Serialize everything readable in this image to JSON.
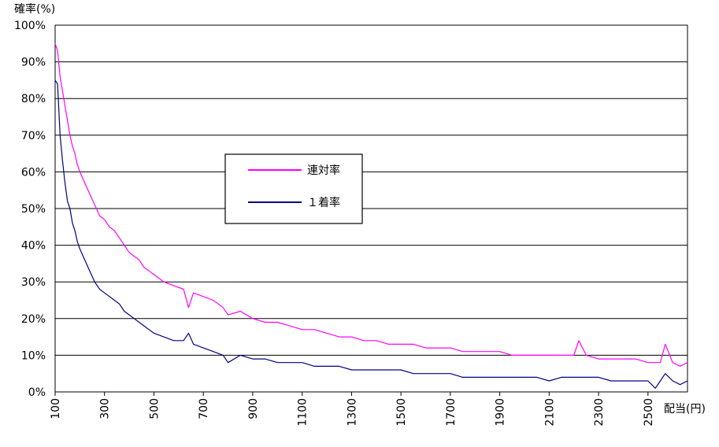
{
  "chart_data": {
    "type": "line",
    "ylabel": "確率(%)",
    "xlabel": "配当(円)",
    "xlim": [
      100,
      2660
    ],
    "ylim": [
      0,
      100
    ],
    "y_ticks": [
      0,
      10,
      20,
      30,
      40,
      50,
      60,
      70,
      80,
      90,
      100
    ],
    "y_tick_labels": [
      "0%",
      "10%",
      "20%",
      "30%",
      "40%",
      "50%",
      "60%",
      "70%",
      "80%",
      "90%",
      "100%"
    ],
    "x_ticks": [
      100,
      300,
      500,
      700,
      900,
      1100,
      1300,
      1500,
      1700,
      1900,
      2100,
      2300,
      2500
    ],
    "x_tick_labels": [
      "100",
      "300",
      "500",
      "700",
      "900",
      "1100",
      "1300",
      "1500",
      "1700",
      "1900",
      "2100",
      "2300",
      "2500"
    ],
    "grid": "horizontal",
    "legend_position": "center-left",
    "series": [
      {
        "name": "連対率",
        "color": "#ff00ff",
        "points": [
          [
            100,
            95
          ],
          [
            110,
            93
          ],
          [
            120,
            86
          ],
          [
            130,
            82
          ],
          [
            140,
            78
          ],
          [
            150,
            74
          ],
          [
            160,
            70
          ],
          [
            170,
            67
          ],
          [
            180,
            65
          ],
          [
            190,
            62
          ],
          [
            200,
            60
          ],
          [
            220,
            57
          ],
          [
            240,
            54
          ],
          [
            260,
            51
          ],
          [
            280,
            48
          ],
          [
            300,
            47
          ],
          [
            320,
            45
          ],
          [
            340,
            44
          ],
          [
            360,
            42
          ],
          [
            380,
            40
          ],
          [
            400,
            38
          ],
          [
            420,
            37
          ],
          [
            440,
            36
          ],
          [
            460,
            34
          ],
          [
            480,
            33
          ],
          [
            500,
            32
          ],
          [
            540,
            30
          ],
          [
            580,
            29
          ],
          [
            620,
            28
          ],
          [
            640,
            23
          ],
          [
            660,
            27
          ],
          [
            700,
            26
          ],
          [
            740,
            25
          ],
          [
            780,
            23
          ],
          [
            800,
            21
          ],
          [
            850,
            22
          ],
          [
            900,
            20
          ],
          [
            950,
            19
          ],
          [
            1000,
            19
          ],
          [
            1050,
            18
          ],
          [
            1100,
            17
          ],
          [
            1150,
            17
          ],
          [
            1200,
            16
          ],
          [
            1250,
            15
          ],
          [
            1300,
            15
          ],
          [
            1350,
            14
          ],
          [
            1400,
            14
          ],
          [
            1450,
            13
          ],
          [
            1500,
            13
          ],
          [
            1550,
            13
          ],
          [
            1600,
            12
          ],
          [
            1650,
            12
          ],
          [
            1700,
            12
          ],
          [
            1750,
            11
          ],
          [
            1800,
            11
          ],
          [
            1850,
            11
          ],
          [
            1900,
            11
          ],
          [
            1950,
            10
          ],
          [
            2000,
            10
          ],
          [
            2050,
            10
          ],
          [
            2100,
            10
          ],
          [
            2150,
            10
          ],
          [
            2200,
            10
          ],
          [
            2220,
            14
          ],
          [
            2250,
            10
          ],
          [
            2300,
            9
          ],
          [
            2350,
            9
          ],
          [
            2400,
            9
          ],
          [
            2450,
            9
          ],
          [
            2500,
            8
          ],
          [
            2550,
            8
          ],
          [
            2570,
            13
          ],
          [
            2600,
            8
          ],
          [
            2630,
            7
          ],
          [
            2660,
            8
          ]
        ]
      },
      {
        "name": "１着率",
        "color": "#000080",
        "points": [
          [
            100,
            85
          ],
          [
            110,
            84
          ],
          [
            120,
            70
          ],
          [
            130,
            63
          ],
          [
            140,
            57
          ],
          [
            150,
            52
          ],
          [
            160,
            50
          ],
          [
            170,
            46
          ],
          [
            180,
            44
          ],
          [
            190,
            41
          ],
          [
            200,
            39
          ],
          [
            220,
            36
          ],
          [
            240,
            33
          ],
          [
            260,
            30
          ],
          [
            280,
            28
          ],
          [
            300,
            27
          ],
          [
            320,
            26
          ],
          [
            340,
            25
          ],
          [
            360,
            24
          ],
          [
            380,
            22
          ],
          [
            400,
            21
          ],
          [
            420,
            20
          ],
          [
            440,
            19
          ],
          [
            460,
            18
          ],
          [
            480,
            17
          ],
          [
            500,
            16
          ],
          [
            540,
            15
          ],
          [
            580,
            14
          ],
          [
            620,
            14
          ],
          [
            640,
            16
          ],
          [
            660,
            13
          ],
          [
            700,
            12
          ],
          [
            740,
            11
          ],
          [
            780,
            10
          ],
          [
            800,
            8
          ],
          [
            850,
            10
          ],
          [
            900,
            9
          ],
          [
            950,
            9
          ],
          [
            1000,
            8
          ],
          [
            1050,
            8
          ],
          [
            1100,
            8
          ],
          [
            1150,
            7
          ],
          [
            1200,
            7
          ],
          [
            1250,
            7
          ],
          [
            1300,
            6
          ],
          [
            1350,
            6
          ],
          [
            1400,
            6
          ],
          [
            1450,
            6
          ],
          [
            1500,
            6
          ],
          [
            1550,
            5
          ],
          [
            1600,
            5
          ],
          [
            1650,
            5
          ],
          [
            1700,
            5
          ],
          [
            1750,
            4
          ],
          [
            1800,
            4
          ],
          [
            1850,
            4
          ],
          [
            1900,
            4
          ],
          [
            1950,
            4
          ],
          [
            2000,
            4
          ],
          [
            2050,
            4
          ],
          [
            2100,
            3
          ],
          [
            2150,
            4
          ],
          [
            2200,
            4
          ],
          [
            2250,
            4
          ],
          [
            2300,
            4
          ],
          [
            2350,
            3
          ],
          [
            2400,
            3
          ],
          [
            2450,
            3
          ],
          [
            2500,
            3
          ],
          [
            2530,
            1
          ],
          [
            2550,
            3
          ],
          [
            2570,
            5
          ],
          [
            2600,
            3
          ],
          [
            2630,
            2
          ],
          [
            2660,
            3
          ]
        ]
      }
    ]
  }
}
